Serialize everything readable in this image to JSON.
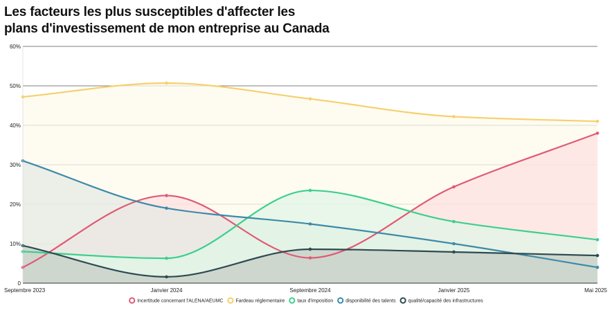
{
  "chart_data": {
    "type": "area",
    "title_lines": [
      "Les facteurs les plus susceptibles d'affecter les",
      "plans d'investissement de mon entreprise au Canada"
    ],
    "xlabel": "",
    "ylabel": "",
    "categories": [
      "Septembre 2023",
      "Janvier 2024",
      "Septembre 2024",
      "Janvier 2025",
      "Mai 2025"
    ],
    "y_ticks": [
      "0",
      "10%",
      "20%",
      "30%",
      "40%",
      "50%",
      "60%"
    ],
    "ylim": [
      0,
      60
    ],
    "grid": true,
    "legend_position": "bottom",
    "series": [
      {
        "name": "Incertitude concernant l'ALENA/AEUMC",
        "color": "#e05a74",
        "fill": "#fde2e0",
        "values": [
          4,
          22.2,
          6.4,
          24.4,
          38
        ]
      },
      {
        "name": "Fardeau réglementaire",
        "color": "#f5d06c",
        "fill": "#fdf9ec",
        "values": [
          47.2,
          50.7,
          46.7,
          42.2,
          41
        ]
      },
      {
        "name": "taux d'imposition",
        "color": "#3ccf8e",
        "fill": "#e0f5e6",
        "values": [
          8,
          6.3,
          23.5,
          15.6,
          11
        ]
      },
      {
        "name": "disponibilité des talents",
        "color": "#3d8aa8",
        "fill": "#e6eae4",
        "values": [
          31,
          19,
          15,
          10,
          4
        ]
      },
      {
        "name": "qualité/capacité des infrastructures",
        "color": "#2f4a52",
        "fill": "#c6cec6",
        "values": [
          9.5,
          1.6,
          8.6,
          7.9,
          7
        ]
      }
    ]
  }
}
